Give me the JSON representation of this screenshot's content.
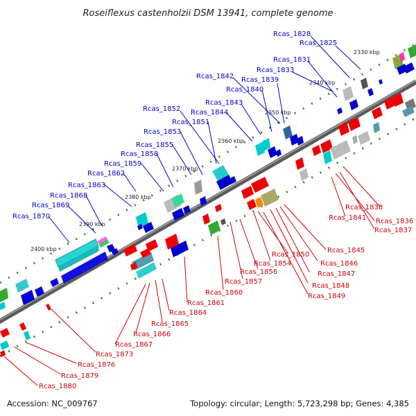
{
  "title": "Roseiflexus castenholzii DSM 13941, complete genome",
  "footer": {
    "accession": "Accession: NC_009767",
    "topology": "Topology: circular; Length: 5,723,298 bp; Genes: 4,385"
  },
  "kbp_ticks": [
    "2330 kbp",
    "2340 kbp",
    "2350 kbp",
    "2360 kbp",
    "2370 kbp",
    "2380 kbp",
    "2390 kbp",
    "2400 kbp"
  ],
  "genes_top": [
    "Rcas_1828",
    "Rcas_1825",
    "Rcas_1831",
    "Rcas_1833",
    "Rcas_1842",
    "Rcas_1839",
    "Rcas_1840",
    "Rcas_1843",
    "Rcas_1844",
    "Rcas_1852",
    "Rcas_1851",
    "Rcas_1853",
    "Rcas_1855",
    "Rcas_1858",
    "Rcas_1859",
    "Rcas_1862",
    "Rcas_1863",
    "Rcas_1868",
    "Rcas_1869",
    "Rcas_1870"
  ],
  "genes_bottom": [
    "Rcas_1838",
    "Rcas_1836",
    "Rcas_1841",
    "Rcas_1837",
    "Rcas_1845",
    "Rcas_1850",
    "Rcas_1846",
    "Rcas_1854",
    "Rcas_1847",
    "Rcas_1856",
    "Rcas_1848",
    "Rcas_1857",
    "Rcas_1849",
    "Rcas_1860",
    "Rcas_1861",
    "Rcas_1864",
    "Rcas_1865",
    "Rcas_1866",
    "Rcas_1867",
    "Rcas_1873",
    "Rcas_1876",
    "Rcas_1879",
    "Rcas_1880"
  ],
  "colors": {
    "forward_strand": "#0000e6",
    "reverse_strand": "#e60000",
    "backbone": "#808080",
    "tick": "#2a8a2a"
  }
}
